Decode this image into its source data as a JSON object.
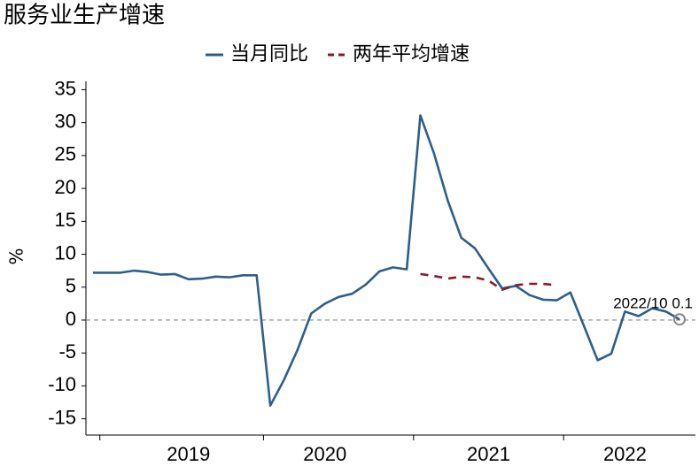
{
  "chart_data": {
    "type": "line",
    "title": "服务业生产增速",
    "y_label": "%",
    "annotation": "2022/10 0.1",
    "categories": [
      null,
      null,
      null,
      null,
      null,
      null,
      null,
      "2019",
      null,
      null,
      null,
      null,
      null,
      null,
      null,
      null,
      null,
      "2020",
      null,
      null,
      null,
      null,
      null,
      null,
      null,
      null,
      null,
      null,
      null,
      "2021",
      null,
      null,
      null,
      null,
      null,
      null,
      null,
      null,
      null,
      "2022",
      null,
      null,
      null,
      null
    ],
    "series": [
      {
        "name": "当月同比",
        "color": "#2e5f8c",
        "dash": false,
        "values": [
          7.2,
          7.2,
          7.2,
          7.5,
          7.3,
          6.9,
          7.0,
          6.2,
          6.3,
          6.6,
          6.5,
          6.8,
          6.8,
          -13.0,
          -9.1,
          -4.5,
          1.0,
          2.5,
          3.5,
          4.0,
          5.4,
          7.4,
          8.0,
          7.7,
          31.1,
          25.3,
          18.2,
          12.5,
          10.9,
          7.8,
          4.8,
          5.2,
          3.8,
          3.1,
          3.0,
          4.2,
          -0.9,
          -6.1,
          -5.1,
          1.3,
          0.6,
          1.8,
          1.3,
          0.1
        ]
      },
      {
        "name": "两年平均增速",
        "color": "#8b1a2e",
        "dash": true,
        "values": [
          null,
          null,
          null,
          null,
          null,
          null,
          null,
          null,
          null,
          null,
          null,
          null,
          null,
          null,
          null,
          null,
          null,
          null,
          null,
          null,
          null,
          null,
          null,
          null,
          7.0,
          6.7,
          6.3,
          6.6,
          6.5,
          6.0,
          4.6,
          5.3,
          5.5,
          5.5,
          5.3,
          null,
          null,
          null,
          null,
          null,
          null,
          null,
          null,
          null
        ]
      }
    ],
    "ylim": [
      -17,
      36
    ],
    "yticks": [
      -15,
      -10,
      -5,
      0,
      5,
      10,
      15,
      20,
      25,
      30,
      35
    ],
    "legend": "top"
  }
}
